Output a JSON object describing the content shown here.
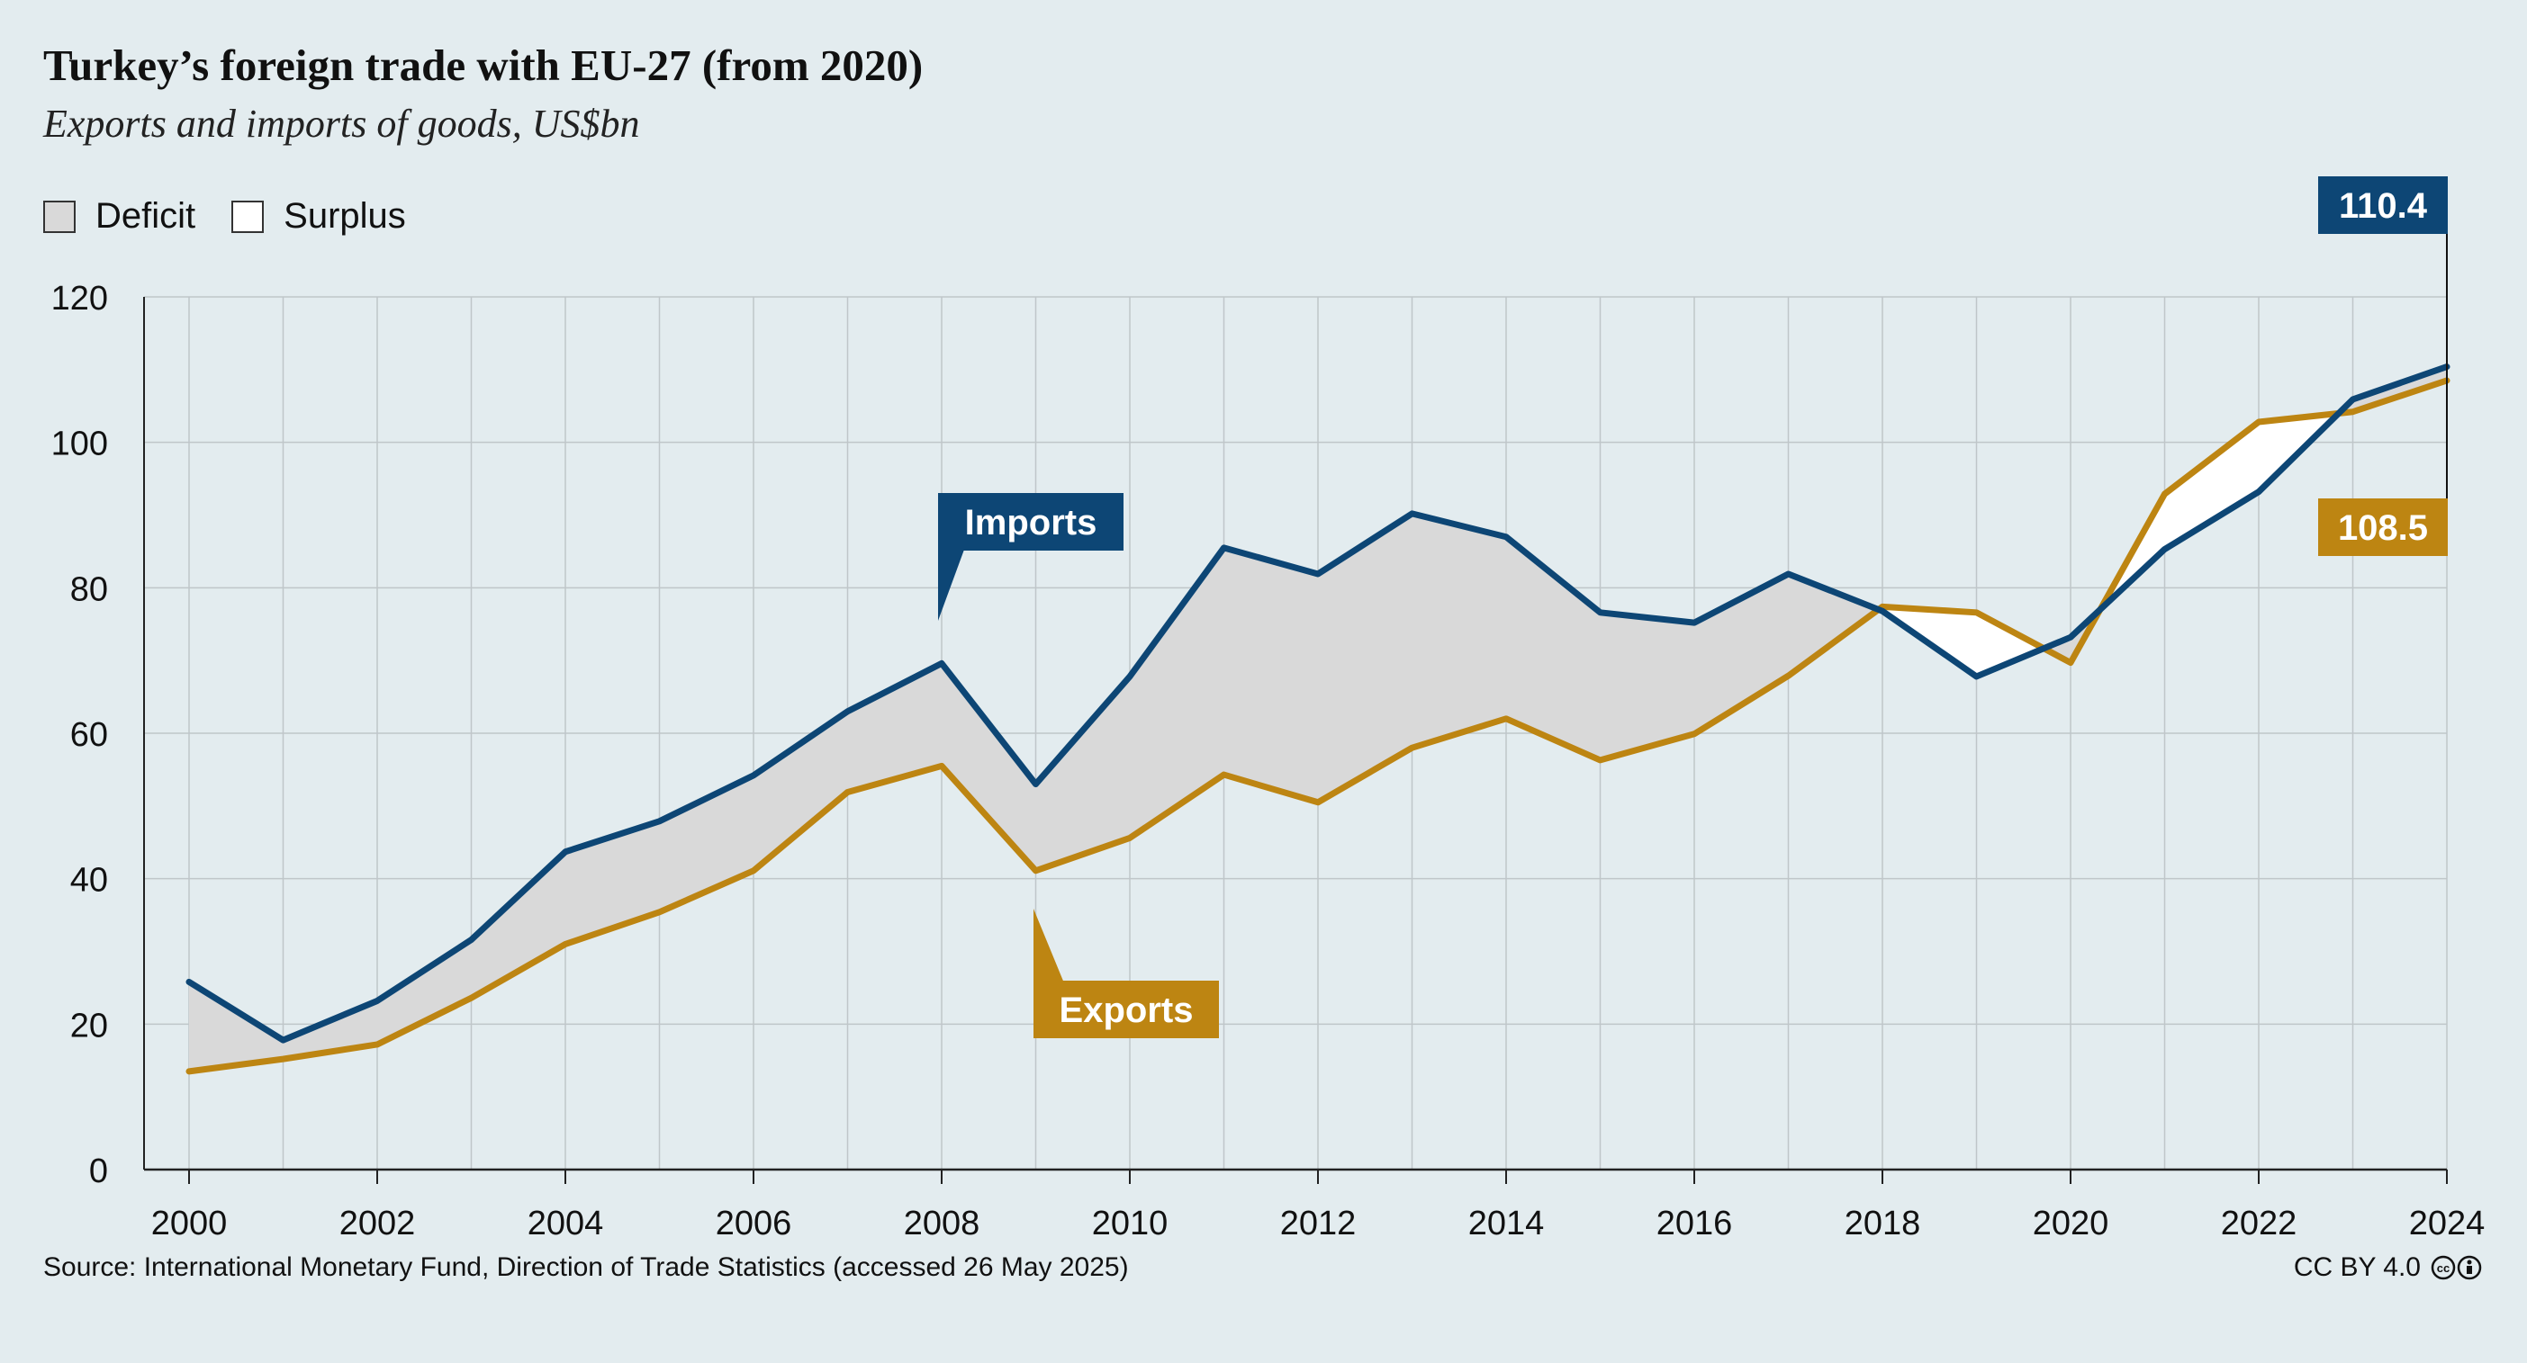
{
  "header": {
    "title": "Turkey’s foreign trade with EU-27 (from 2020)",
    "subtitle": "Exports and imports of goods, US$bn"
  },
  "legend": {
    "deficit_label": "Deficit",
    "surplus_label": "Surplus",
    "deficit_color": "#d9d9d9",
    "surplus_color": "#ffffff"
  },
  "chart_data": {
    "type": "line",
    "title": "Turkey’s foreign trade with EU-27 (from 2020)",
    "subtitle": "Exports and imports of goods, US$bn",
    "x": [
      2000,
      2001,
      2002,
      2003,
      2004,
      2005,
      2006,
      2007,
      2008,
      2009,
      2010,
      2011,
      2012,
      2013,
      2014,
      2015,
      2016,
      2017,
      2018,
      2019,
      2020,
      2021,
      2022,
      2023,
      2024
    ],
    "xlim": [
      2000,
      2024
    ],
    "ylim": [
      0,
      120
    ],
    "x_ticks": [
      "2000",
      "2002",
      "2004",
      "2006",
      "2008",
      "2010",
      "2012",
      "2014",
      "2016",
      "2018",
      "2020",
      "2022",
      "2024"
    ],
    "y_ticks": [
      "0",
      "20",
      "40",
      "60",
      "80",
      "100",
      "120"
    ],
    "grid": true,
    "series": [
      {
        "name": "Imports",
        "color": "#0d4675",
        "values": [
          25.8,
          17.8,
          23.2,
          31.6,
          43.7,
          47.9,
          54.2,
          63.0,
          69.6,
          53.0,
          67.8,
          85.5,
          81.9,
          90.2,
          87.0,
          76.6,
          75.2,
          81.9,
          76.8,
          67.8,
          73.2,
          85.3,
          93.2,
          105.9,
          110.4
        ]
      },
      {
        "name": "Exports",
        "color": "#bd8512",
        "values": [
          13.5,
          15.2,
          17.2,
          23.6,
          31.0,
          35.4,
          41.1,
          51.9,
          55.5,
          41.1,
          45.6,
          54.3,
          50.5,
          58.0,
          62.0,
          56.3,
          59.9,
          67.9,
          77.4,
          76.6,
          69.7,
          92.9,
          102.8,
          104.2,
          108.5
        ]
      }
    ],
    "annotations": {
      "imports_label": "Imports",
      "exports_label": "Exports",
      "imports_last_value": "110.4",
      "exports_last_value": "108.5"
    }
  },
  "footer": {
    "source": "Source: International Monetary Fund, Direction of Trade Statistics (accessed 26 May 2025)",
    "license": "CC BY 4.0"
  }
}
